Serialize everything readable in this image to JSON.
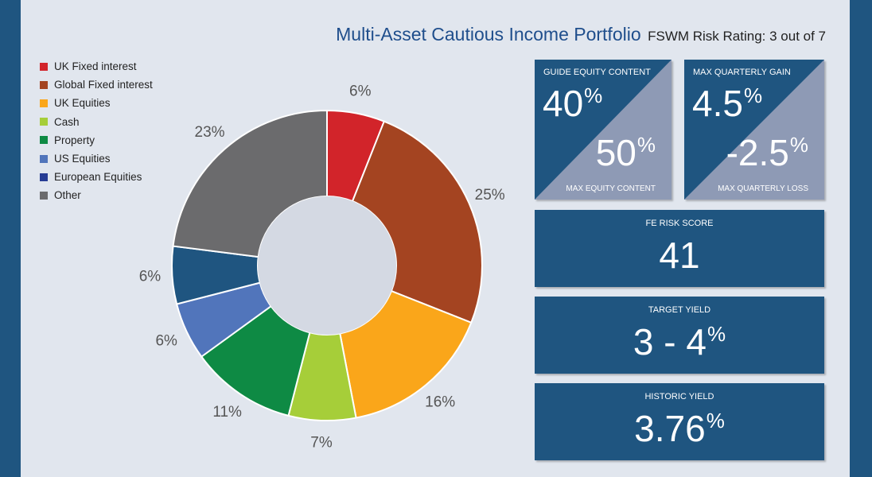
{
  "title": {
    "main": "Multi-Asset Cautious Income Portfolio",
    "sub": "FSWM Risk Rating: 3 out of 7"
  },
  "chart_data": {
    "type": "pie",
    "donut": true,
    "categories": [
      "UK Fixed interest",
      "Global Fixed interest",
      "UK Equities",
      "Cash",
      "Property",
      "US Equities",
      "European Equities",
      "Other"
    ],
    "values": [
      6,
      25,
      16,
      7,
      11,
      6,
      6,
      23
    ],
    "slice_order": [
      0,
      1,
      2,
      3,
      4,
      5,
      6,
      7
    ],
    "colors": [
      "#d2242a",
      "#a44421",
      "#faa61a",
      "#a6ce39",
      "#0e8a44",
      "#5175bb",
      "#1f5580",
      "#6b6b6d"
    ],
    "legend_colors": [
      "#d2242a",
      "#a44421",
      "#faa61a",
      "#a6ce39",
      "#0e8a44",
      "#5175bb",
      "#263c94",
      "#6b6b6d"
    ],
    "data_labels": [
      "6%",
      "25%",
      "16%",
      "7%",
      "11%",
      "6%",
      "6%",
      "23%"
    ],
    "legend_position": "top-left"
  },
  "tiles": {
    "equity": {
      "top_label": "GUIDE EQUITY CONTENT",
      "top_value": "40",
      "top_unit": "%",
      "bottom_value": "50",
      "bottom_unit": "%",
      "bottom_label": "MAX EQUITY CONTENT"
    },
    "quarterly": {
      "top_label": "MAX QUARTERLY GAIN",
      "top_value": "4.5",
      "top_unit": "%",
      "bottom_value": "-2.5",
      "bottom_unit": "%",
      "bottom_label": "MAX QUARTERLY LOSS"
    },
    "fe_risk": {
      "label": "FE RISK SCORE",
      "value": "41"
    },
    "target_yield": {
      "label": "TARGET YIELD",
      "value": "3 - 4",
      "unit": "%"
    },
    "historic_yield": {
      "label": "HISTORIC YIELD",
      "value": "3.76",
      "unit": "%"
    }
  },
  "colors": {
    "tile_dark": "#1f5580",
    "tile_light": "#8e9ab5",
    "panel": "#e1e6ee"
  }
}
